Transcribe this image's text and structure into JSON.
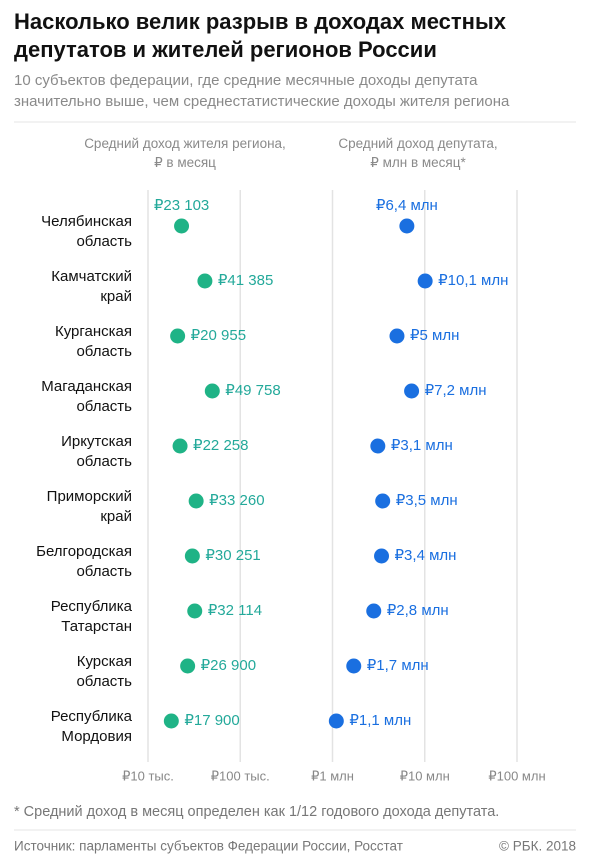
{
  "chart_data": {
    "type": "dot",
    "title": "Насколько велик разрыв в доходах местных\nдепутатов и жителей регионов России",
    "subtitle": "10 субъектов федерации, где средние месячные доходы депутата\nзначительно выше, чем среднестатистические доходы жителя региона",
    "categories": [
      "Челябинская\nобласть",
      "Камчатский\nкрай",
      "Курганская\nобласть",
      "Магаданская\nобласть",
      "Иркутская\nобласть",
      "Приморский\nкрай",
      "Белгородская\nобласть",
      "Республика\nТатарстан",
      "Курская\nобласть",
      "Республика\nМордовия"
    ],
    "series": [
      {
        "name": "Средний доход жителя региона,\n₽ в месяц",
        "color": "#1fb386",
        "label_color": "#23a99a",
        "values": [
          23103,
          41385,
          20955,
          49758,
          22258,
          33260,
          30251,
          32114,
          26900,
          17900
        ],
        "value_labels": [
          "₽23 103",
          "₽41 385",
          "₽20 955",
          "₽49 758",
          "₽22 258",
          "₽33 260",
          "₽30 251",
          "₽32 114",
          "₽26 900",
          "₽17 900"
        ]
      },
      {
        "name": "Средний доход депутата,\n₽ млн в месяц*",
        "color": "#1a6fe0",
        "label_color": "#1a6fe0",
        "values": [
          6400000,
          10100000,
          5000000,
          7200000,
          3100000,
          3500000,
          3400000,
          2800000,
          1700000,
          1100000
        ],
        "value_labels": [
          "₽6,4 млн",
          "₽10,1 млн",
          "₽5 млн",
          "₽7,2 млн",
          "₽3,1 млн",
          "₽3,5 млн",
          "₽3,4 млн",
          "₽2,8 млн",
          "₽1,7 млн",
          "₽1,1 млн"
        ]
      }
    ],
    "xlim": [
      10000,
      100000000
    ],
    "log_x": true,
    "grid": true,
    "xticks": [
      {
        "value": 10000,
        "label": "₽10 тыс."
      },
      {
        "value": 100000,
        "label": "₽100 тыс."
      },
      {
        "value": 1000000,
        "label": "₽1 млн"
      },
      {
        "value": 10000000,
        "label": "₽10 млн"
      },
      {
        "value": 100000000,
        "label": "₽100 млн"
      }
    ],
    "footnote": "* Средний доход в месяц определен как 1/12 годового дохода депутата.",
    "source": "Источник: парламенты субъектов Федерации России, Росстат",
    "copyright": "© РБК. 2018"
  }
}
